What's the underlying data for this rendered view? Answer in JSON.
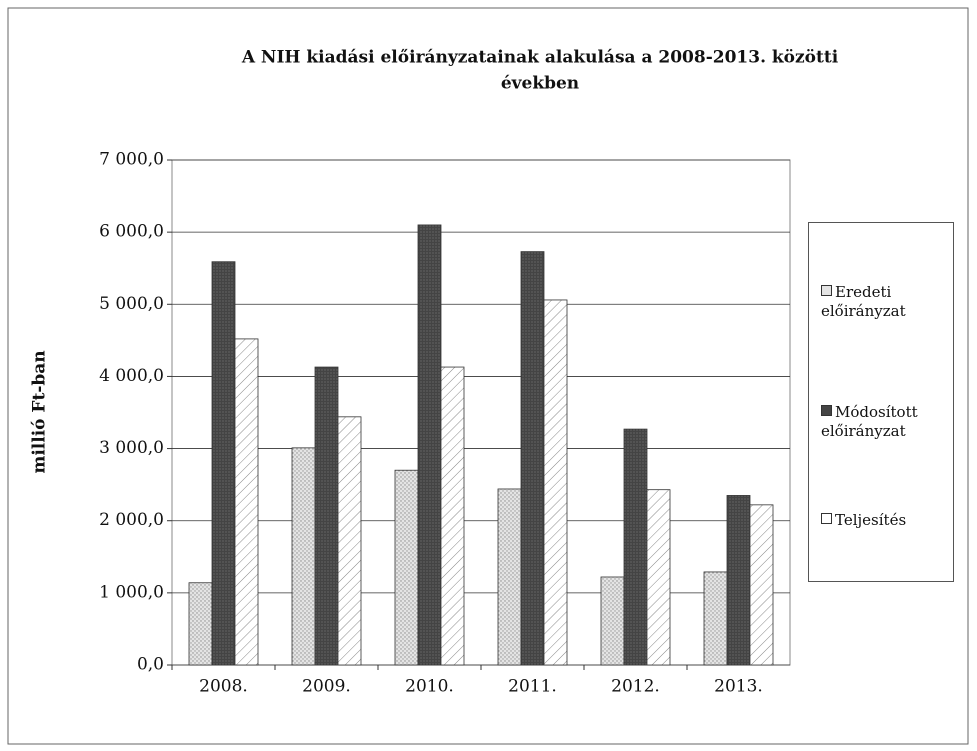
{
  "chart_data": {
    "type": "bar",
    "title": "A NIH kiadási előirányzatainak alakulása a 2008-2013. közötti",
    "title_line2": "években",
    "y_label": "millió Ft-ban",
    "categories": [
      "2008.",
      "2009.",
      "2010.",
      "2011.",
      "2012.",
      "2013."
    ],
    "series": [
      {
        "name": "Eredeti előirányzat",
        "color": "#e4e4e4",
        "values": [
          1140,
          3010,
          2700,
          2440,
          1220,
          1290
        ]
      },
      {
        "name": "Módosított előirányzat",
        "color": "#444444",
        "values": [
          5590,
          4130,
          6100,
          5730,
          3270,
          2350
        ]
      },
      {
        "name": "Teljesítés",
        "color": "#ffffff",
        "values": [
          4520,
          3440,
          4130,
          5060,
          2430,
          2220
        ]
      }
    ],
    "ylim": [
      0,
      7000
    ],
    "yticks": [
      {
        "value": 0,
        "label": "0,0"
      },
      {
        "value": 1000,
        "label": "1 000,0"
      },
      {
        "value": 2000,
        "label": "2 000,0"
      },
      {
        "value": 3000,
        "label": "3 000,0"
      },
      {
        "value": 4000,
        "label": "4 000,0"
      },
      {
        "value": 5000,
        "label": "5 000,0"
      },
      {
        "value": 6000,
        "label": "6 000,0"
      },
      {
        "value": 7000,
        "label": "7 000,0"
      }
    ],
    "grid": true,
    "legend": "right"
  }
}
